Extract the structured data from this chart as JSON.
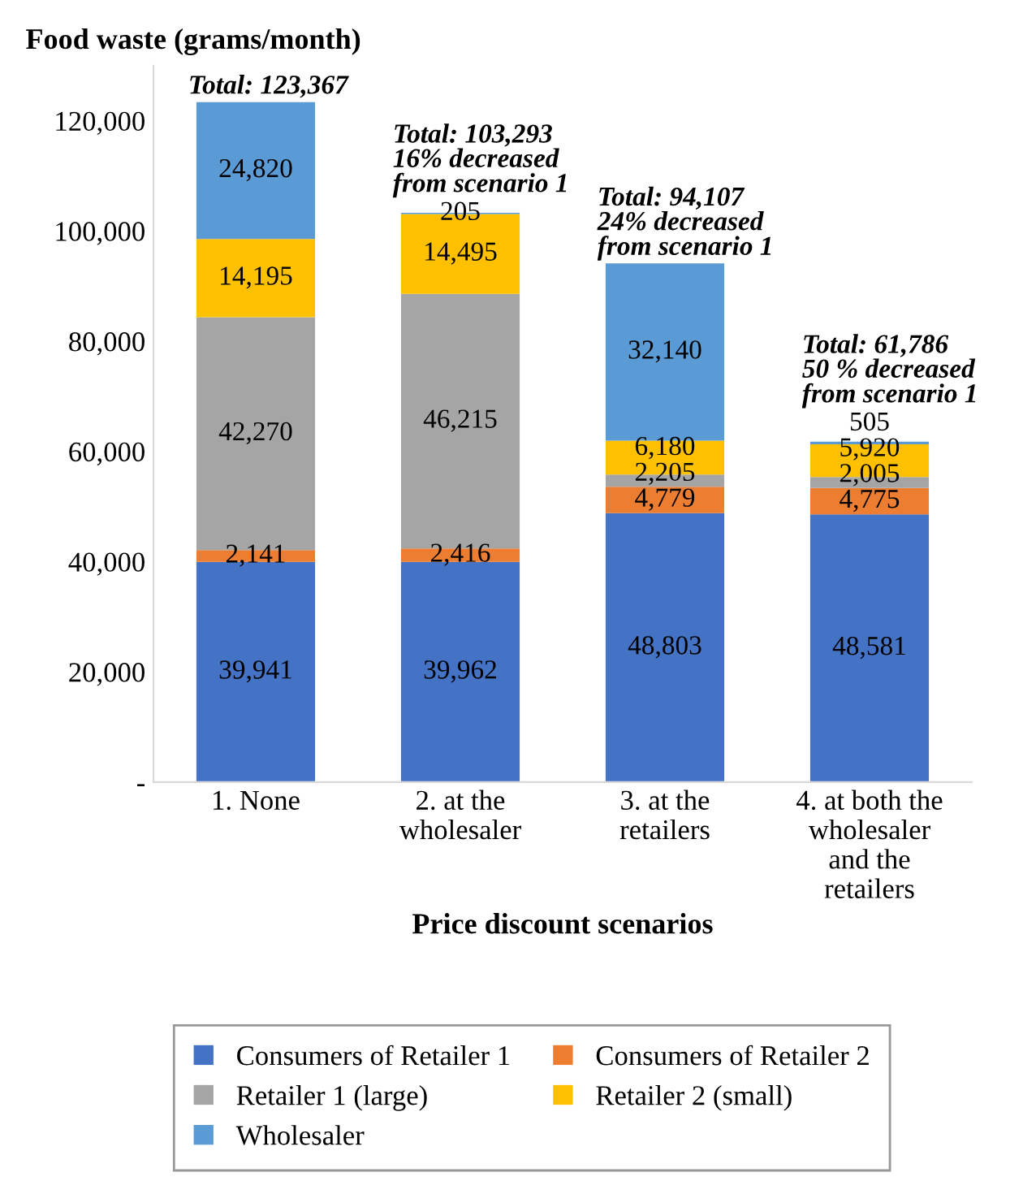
{
  "chart_data": {
    "type": "bar",
    "stacked": true,
    "ylabel": "Food waste (grams/month)",
    "xlabel": "Price discount scenarios",
    "categories": [
      "1. None",
      "2. at the\nwholesaler",
      "3. at the\nretailers",
      "4. at both the\nwholesaler\nand the\nretailers"
    ],
    "series": [
      {
        "name": "Consumers of Retailer 1",
        "color": "#4472c4",
        "values": [
          39941,
          39962,
          48803,
          48581
        ],
        "value_labels": [
          "39,941",
          "39,962",
          "48,803",
          "48,581"
        ]
      },
      {
        "name": "Consumers of Retailer 2",
        "color": "#ed7d31",
        "values": [
          2141,
          2416,
          4779,
          4775
        ],
        "value_labels": [
          "2,141",
          "2,416",
          "4,779",
          "4,775"
        ]
      },
      {
        "name": "Retailer 1 (large)",
        "color": "#a5a5a5",
        "values": [
          42270,
          46215,
          2205,
          2005
        ],
        "value_labels": [
          "42,270",
          "46,215",
          "2,205",
          "2,005"
        ]
      },
      {
        "name": "Retailer 2 (small)",
        "color": "#ffc000",
        "values": [
          14195,
          14495,
          6180,
          5920
        ],
        "value_labels": [
          "14,195",
          "14,495",
          "6,180",
          "5,920"
        ]
      },
      {
        "name": "Wholesaler",
        "color": "#5b9bd5",
        "values": [
          24820,
          205,
          32140,
          505
        ],
        "value_labels": [
          "24,820",
          "205",
          "32,140",
          "505"
        ]
      }
    ],
    "totals": [
      "Total: 123,367",
      "Total: 103,293\n16% decreased\nfrom scenario 1",
      "Total: 94,107\n24% decreased\nfrom scenario 1",
      "Total: 61,786\n50 % decreased\nfrom scenario 1"
    ],
    "ylim": [
      0,
      130000
    ],
    "yticks": [
      {
        "value": 0,
        "label": "-"
      },
      {
        "value": 20000,
        "label": "20,000"
      },
      {
        "value": 40000,
        "label": "40,000"
      },
      {
        "value": 60000,
        "label": "60,000"
      },
      {
        "value": 80000,
        "label": "80,000"
      },
      {
        "value": 100000,
        "label": "100,000"
      },
      {
        "value": 120000,
        "label": "120,000"
      }
    ],
    "grid": false,
    "legend": "bottom"
  }
}
